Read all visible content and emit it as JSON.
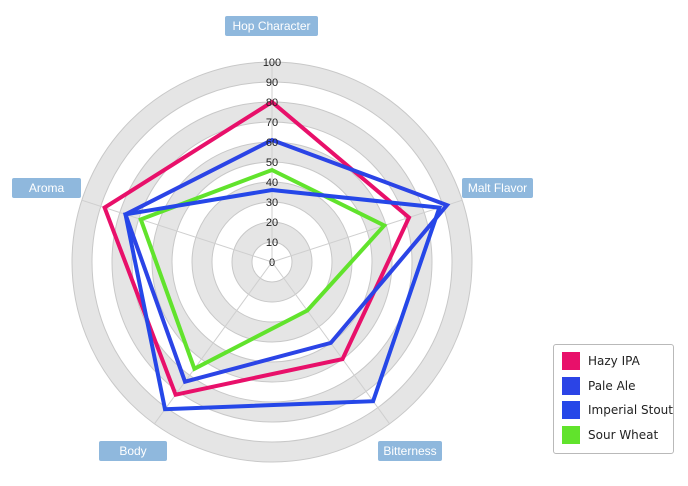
{
  "chart_data": {
    "type": "radar",
    "title": "",
    "axes": [
      "Hop Character",
      "Malt Flavor",
      "Bitterness",
      "Body",
      "Aroma"
    ],
    "rlim": [
      0,
      100
    ],
    "ticks": [
      0,
      10,
      20,
      30,
      40,
      50,
      60,
      70,
      80,
      90,
      100
    ],
    "grid": true,
    "legend_position": "bottom-right",
    "series": [
      {
        "name": "Hazy IPA",
        "color": "#e8106a",
        "values": [
          80,
          72,
          60,
          82,
          88
        ]
      },
      {
        "name": "Pale Ale",
        "color": "#2b44e6",
        "values": [
          61,
          92,
          50,
          74,
          77
        ]
      },
      {
        "name": "Imperial Stout",
        "color": "#2547e8",
        "values": [
          36,
          88,
          86,
          91,
          77
        ]
      },
      {
        "name": "Sour Wheat",
        "color": "#61e32c",
        "values": [
          46,
          59,
          30,
          66,
          69
        ]
      }
    ]
  }
}
